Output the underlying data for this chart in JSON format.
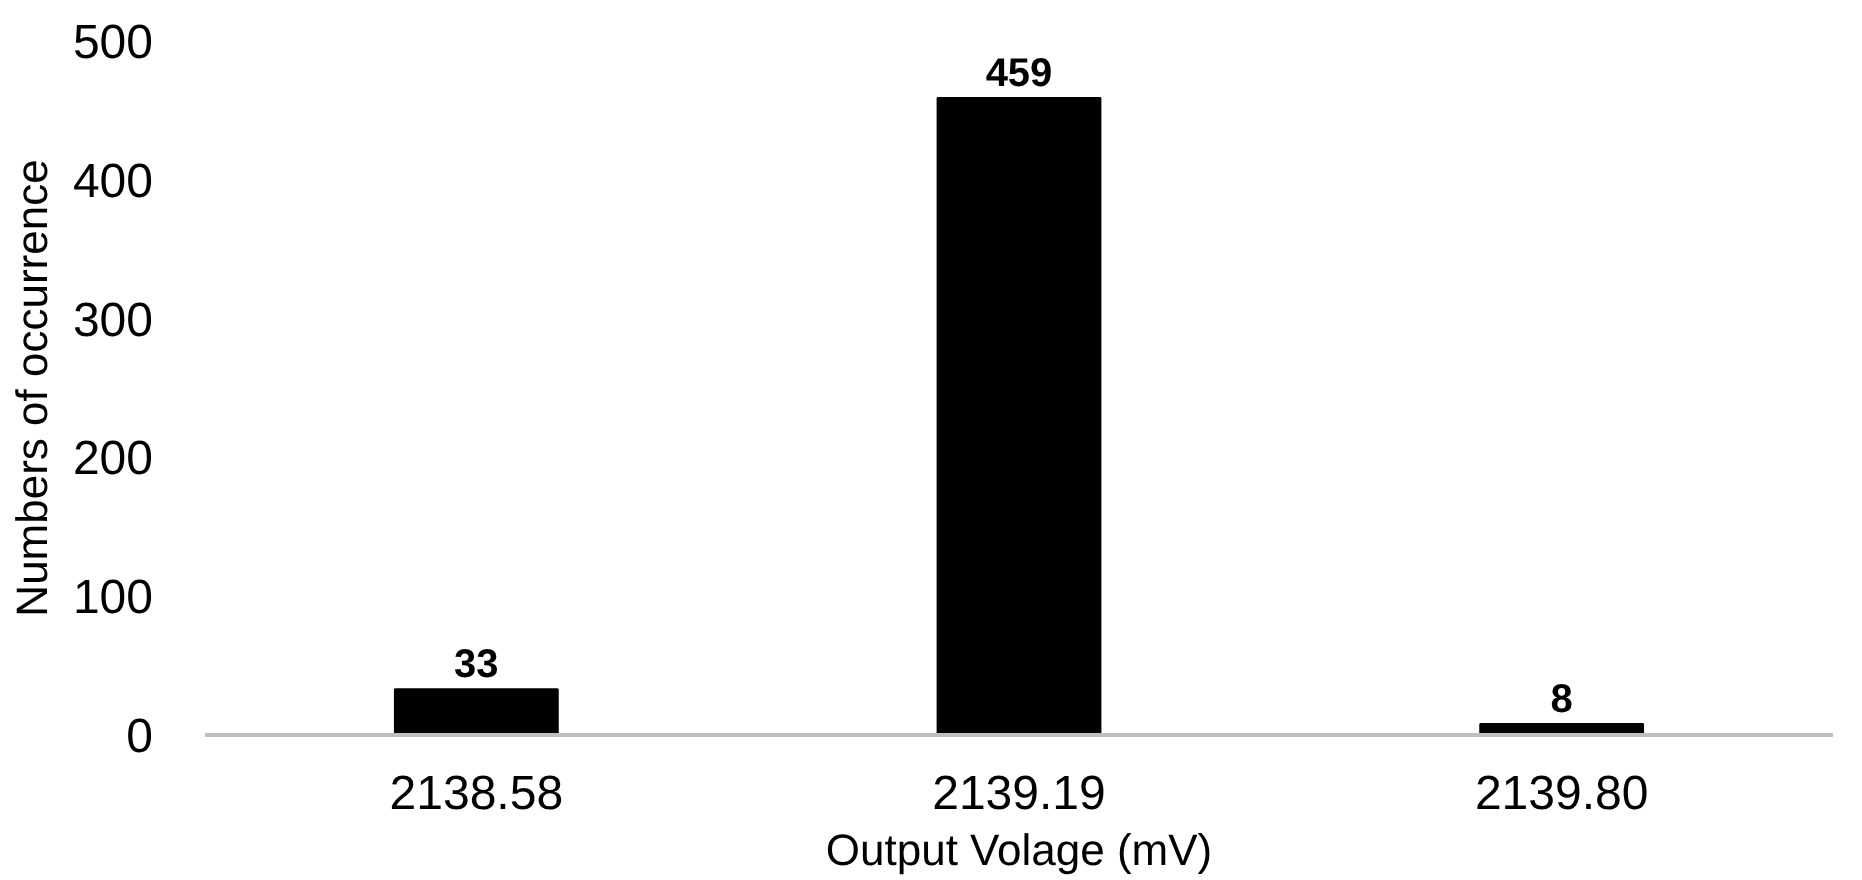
{
  "chart_data": {
    "type": "bar",
    "xlabel": "Output Volage (mV)",
    "ylabel": "Numbers of occurrence",
    "categories": [
      "2138.58",
      "2139.19",
      "2139.80"
    ],
    "values": [
      33,
      459,
      8
    ],
    "color": "#000000",
    "data_labels": true,
    "ylim": [
      0,
      500
    ],
    "yticks": [
      0,
      100,
      200,
      300,
      400,
      500
    ],
    "grid": false
  }
}
